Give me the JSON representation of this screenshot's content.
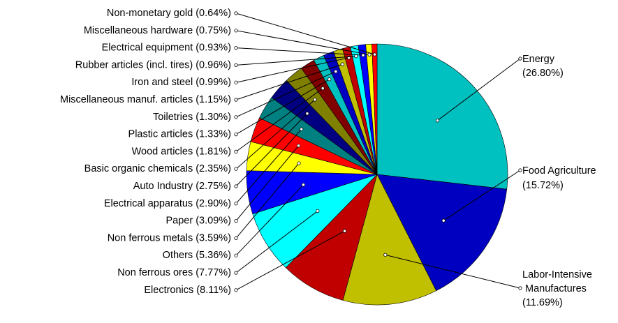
{
  "chart_data": {
    "type": "pie",
    "title": "",
    "slices": [
      {
        "label": "Energy",
        "value": 26.8,
        "pct": "(26.80%)",
        "color": "#00C0C0",
        "side": "right"
      },
      {
        "label": "Food Agriculture",
        "value": 15.72,
        "pct": "(15.72%)",
        "color": "#0000C0",
        "side": "right"
      },
      {
        "label": "Labor-Intensive Manufactures",
        "value": 11.69,
        "pct": "(11.69%)",
        "color": "#C0C000",
        "side": "right"
      },
      {
        "label": "Electronics",
        "value": 8.11,
        "pct": "(8.11%)",
        "color": "#C00000",
        "side": "left"
      },
      {
        "label": "Non ferrous ores",
        "value": 7.77,
        "pct": "(7.77%)",
        "color": "#00FFFF",
        "side": "left"
      },
      {
        "label": "Others",
        "value": 5.36,
        "pct": "(5.36%)",
        "color": "#0000FF",
        "side": "left"
      },
      {
        "label": "Non ferrous metals",
        "value": 3.59,
        "pct": "(3.59%)",
        "color": "#FFFF00",
        "side": "left"
      },
      {
        "label": "Paper",
        "value": 3.09,
        "pct": "(3.09%)",
        "color": "#FF0000",
        "side": "left"
      },
      {
        "label": "Electrical apparatus",
        "value": 2.9,
        "pct": "(2.90%)",
        "color": "#008080",
        "side": "left"
      },
      {
        "label": "Auto Industry",
        "value": 2.75,
        "pct": "(2.75%)",
        "color": "#000080",
        "side": "left"
      },
      {
        "label": "Basic organic chemicals",
        "value": 2.35,
        "pct": "(2.35%)",
        "color": "#808000",
        "side": "left"
      },
      {
        "label": "Wood articles",
        "value": 1.81,
        "pct": "(1.81%)",
        "color": "#800000",
        "side": "left"
      },
      {
        "label": "Plastic articles",
        "value": 1.33,
        "pct": "(1.33%)",
        "color": "#00C0C0",
        "side": "left"
      },
      {
        "label": "Toiletries",
        "value": 1.3,
        "pct": "(1.30%)",
        "color": "#0000C0",
        "side": "left"
      },
      {
        "label": "Miscellaneous manuf. articles",
        "value": 1.15,
        "pct": "(1.15%)",
        "color": "#C0C000",
        "side": "left"
      },
      {
        "label": "Iron and steel",
        "value": 0.99,
        "pct": "(0.99%)",
        "color": "#C00000",
        "side": "left"
      },
      {
        "label": "Rubber articles (incl. tires)",
        "value": 0.96,
        "pct": "(0.96%)",
        "color": "#00FFFF",
        "side": "left"
      },
      {
        "label": "Electrical equipment",
        "value": 0.93,
        "pct": "(0.93%)",
        "color": "#0000FF",
        "side": "left"
      },
      {
        "label": "Miscellaneous hardware",
        "value": 0.75,
        "pct": "(0.75%)",
        "color": "#FFFF00",
        "side": "left"
      },
      {
        "label": "Non-monetary gold",
        "value": 0.64,
        "pct": "(0.64%)",
        "color": "#FF0000",
        "side": "left"
      }
    ],
    "legend": "none",
    "label_style": "leader-lines"
  }
}
